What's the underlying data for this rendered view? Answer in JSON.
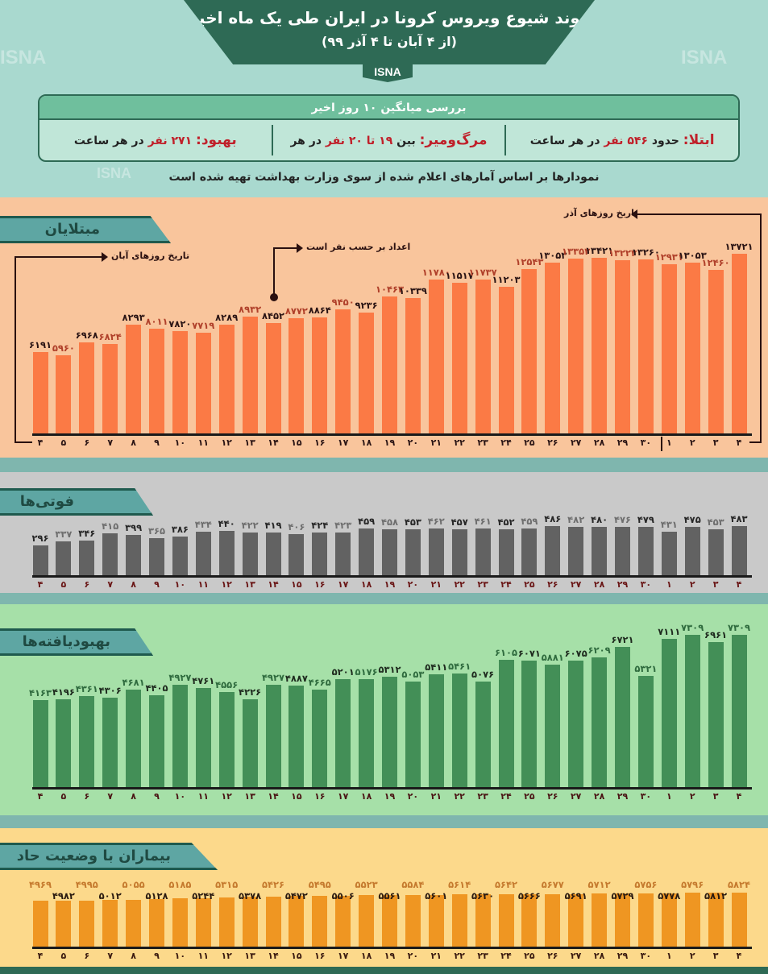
{
  "header": {
    "title": "روند شیوع ویروس کرونا در ایران طی یک ماه اخیر",
    "subtitle": "(از ۴ آبان تا ۴ آذر ۹۹)",
    "source": "ISNA"
  },
  "summary": {
    "heading": "بررسی میانگین ۱۰ روز اخیر",
    "infection": {
      "label": "ابتلا:",
      "before": "حدود",
      "value": "۵۴۶ نفر",
      "after": "در هر ساعت"
    },
    "deaths": {
      "label": "مرگ‌ومیر:",
      "before": "بین",
      "value": "۱۹ تا ۲۰ نفر",
      "after": "در هر ساعت"
    },
    "recovery": {
      "label": "بهبود:",
      "before": "",
      "value": "۲۷۱ نفر",
      "after": "در هر ساعت"
    }
  },
  "note": "نمودارها بر اساس آمارهای اعلام شده از سوی وزارت بهداشت تهیه شده است",
  "annotations": {
    "aban_label": "تاریخ روزهای آبان",
    "azar_label": "تاریخ روزهای آذر",
    "unit_note": "اعداد بر حسب نفر است"
  },
  "watermark": "ISNA",
  "chart_data": [
    {
      "type": "bar",
      "title": "مبتلایان",
      "categories": [
        "4",
        "5",
        "6",
        "7",
        "8",
        "9",
        "10",
        "11",
        "12",
        "13",
        "14",
        "15",
        "16",
        "17",
        "18",
        "19",
        "20",
        "21",
        "22",
        "23",
        "24",
        "25",
        "26",
        "27",
        "28",
        "29",
        "30",
        "1",
        "2",
        "3",
        "4"
      ],
      "values": [
        6191,
        5960,
        6968,
        6824,
        8293,
        8011,
        7820,
        7719,
        8289,
        8932,
        8452,
        8772,
        8864,
        9450,
        9236,
        10463,
        10339,
        11780,
        11517,
        11737,
        11203,
        12543,
        13053,
        13352,
        13421,
        13223,
        13260,
        12931,
        13053,
        12460,
        13721
      ],
      "colors": {
        "bar": "#fb7a45",
        "label_a": "#2a1414",
        "label_b": "#b0402a",
        "date": "#2a1414",
        "bg": "#f9c59c"
      }
    },
    {
      "type": "bar",
      "title": "فوتی‌ها",
      "categories": [
        "4",
        "5",
        "6",
        "7",
        "8",
        "9",
        "10",
        "11",
        "12",
        "13",
        "14",
        "15",
        "16",
        "17",
        "18",
        "19",
        "20",
        "21",
        "22",
        "23",
        "24",
        "25",
        "26",
        "27",
        "28",
        "29",
        "30",
        "1",
        "2",
        "3",
        "4"
      ],
      "values": [
        296,
        337,
        346,
        415,
        399,
        365,
        386,
        434,
        440,
        422,
        419,
        406,
        424,
        423,
        459,
        458,
        453,
        462,
        457,
        461,
        452,
        459,
        486,
        482,
        480,
        476,
        479,
        431,
        475,
        453,
        483
      ],
      "colors": {
        "bar": "#626262",
        "label_a": "#262626",
        "label_b": "#6e6e6e",
        "date": "#6a1616",
        "bg": "#c9c9c9"
      }
    },
    {
      "type": "bar",
      "title": "بهبودیافته‌ها",
      "categories": [
        "4",
        "5",
        "6",
        "7",
        "8",
        "9",
        "10",
        "11",
        "12",
        "13",
        "14",
        "15",
        "16",
        "17",
        "18",
        "19",
        "20",
        "21",
        "22",
        "23",
        "24",
        "25",
        "26",
        "27",
        "28",
        "29",
        "30",
        "1",
        "2",
        "3",
        "4"
      ],
      "values": [
        4163,
        4196,
        4361,
        4306,
        4681,
        4405,
        4927,
        4761,
        4556,
        4226,
        4927,
        4887,
        4665,
        5201,
        5176,
        5312,
        5053,
        5411,
        5461,
        5076,
        6105,
        6071,
        5881,
        6075,
        6209,
        6721,
        5321,
        7111,
        7309,
        6961,
        7309
      ],
      "colors": {
        "bar": "#438f57",
        "label_a": "#2f6b3e",
        "label_b": "#1e2a1e",
        "date": "#4a1414",
        "bg": "#a6e0a8"
      }
    },
    {
      "type": "bar",
      "title": "بیماران با وضعیت حاد",
      "categories": [
        "4",
        "5",
        "6",
        "7",
        "8",
        "9",
        "10",
        "11",
        "12",
        "13",
        "14",
        "15",
        "16",
        "17",
        "18",
        "19",
        "20",
        "21",
        "22",
        "23",
        "24",
        "25",
        "26",
        "27",
        "28",
        "29",
        "30",
        "1",
        "2",
        "3",
        "4"
      ],
      "values": [
        4969,
        4982,
        4995,
        5012,
        5055,
        5128,
        5185,
        5244,
        5315,
        5378,
        5426,
        5472,
        5495,
        5506,
        5523,
        5561,
        5584,
        5601,
        5614,
        5630,
        5642,
        5666,
        5677,
        5691,
        5712,
        5729,
        5756,
        5778,
        5796,
        5812,
        5824
      ],
      "colors": {
        "bar": "#ef9622",
        "label_a": "#c57a2e",
        "label_b": "#2a1a10",
        "date": "#3a1a10",
        "bg": "#fcd98b"
      }
    }
  ]
}
